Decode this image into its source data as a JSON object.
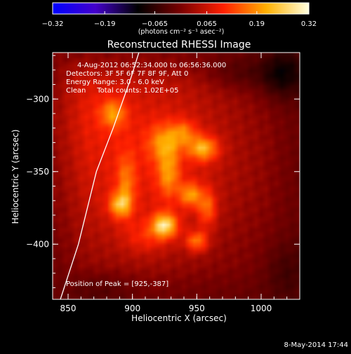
{
  "chart_data": {
    "type": "heatmap",
    "title": "Reconstructed RHESSI Image",
    "xlabel": "Heliocentric X (arcsec)",
    "ylabel": "Heliocentric Y (arcsec)",
    "xlim": [
      838,
      1030
    ],
    "ylim": [
      -438,
      -268
    ],
    "xticks": [
      850,
      900,
      950,
      1000
    ],
    "yticks": [
      -300,
      -350,
      -400
    ],
    "xtick_labels": [
      "850",
      "900",
      "950",
      "1000"
    ],
    "ytick_labels": [
      "−300",
      "−350",
      "−400"
    ],
    "colorbar": {
      "range": [
        -0.32,
        0.32
      ],
      "tick_values": [
        -0.32,
        -0.19,
        -0.065,
        0.065,
        0.19,
        0.32
      ],
      "tick_labels": [
        "−0.32",
        "−0.19",
        "−0.065",
        "0.065",
        "0.19",
        "0.32"
      ],
      "unit_label": "(photons cm⁻² s⁻¹ asec⁻²)",
      "colors": [
        "#0000ff",
        "#4400cc",
        "#000000",
        "#7a0000",
        "#ff2000",
        "#ffb000",
        "#ffffe0"
      ]
    },
    "annotations": [
      "4-Aug-2012 06:52:34.000 to 06:56:36.000",
      "Detectors: 3F 5F 6F 7F 8F 9F, Att 0",
      "Energy Range: 3.0 - 6.0 keV",
      "Clean     Total counts: 1.02E+05"
    ],
    "peak_text": "Position of Peak = [925,-387]",
    "peak": [
      925,
      -387
    ],
    "background_level": 0.13,
    "sources": [
      {
        "x": 907,
        "y": -340,
        "sx": 65,
        "sy": 60,
        "amp": 0.1
      },
      {
        "x": 860,
        "y": -300,
        "sx": 22,
        "sy": 25,
        "amp": 0.03
      },
      {
        "x": 885,
        "y": -310,
        "sx": 7,
        "sy": 7,
        "amp": 0.1
      },
      {
        "x": 925,
        "y": -330,
        "sx": 9,
        "sy": 9,
        "amp": 0.1
      },
      {
        "x": 940,
        "y": -323,
        "sx": 7,
        "sy": 6,
        "amp": 0.08
      },
      {
        "x": 955,
        "y": -334,
        "sx": 8,
        "sy": 6,
        "amp": 0.14
      },
      {
        "x": 928,
        "y": -352,
        "sx": 6,
        "sy": 11,
        "amp": 0.1
      },
      {
        "x": 895,
        "y": -358,
        "sx": 5,
        "sy": 14,
        "amp": 0.08
      },
      {
        "x": 890,
        "y": -373,
        "sx": 6,
        "sy": 6,
        "amp": 0.13
      },
      {
        "x": 925,
        "y": -387,
        "sx": 7,
        "sy": 6,
        "amp": 0.18
      },
      {
        "x": 945,
        "y": -366,
        "sx": 6,
        "sy": 6,
        "amp": 0.12
      },
      {
        "x": 958,
        "y": -375,
        "sx": 5,
        "sy": 9,
        "amp": 0.1
      },
      {
        "x": 950,
        "y": -398,
        "sx": 6,
        "sy": 5,
        "amp": 0.12
      },
      {
        "x": 910,
        "y": -395,
        "sx": 12,
        "sy": 8,
        "amp": 0.05
      },
      {
        "x": 1018,
        "y": -282,
        "sx": 12,
        "sy": 12,
        "amp": -0.12
      },
      {
        "x": 985,
        "y": -282,
        "sx": 18,
        "sy": 8,
        "amp": -0.05
      },
      {
        "x": 1020,
        "y": -420,
        "sx": 12,
        "sy": 15,
        "amp": -0.05
      },
      {
        "x": 875,
        "y": -432,
        "sx": 18,
        "sy": 8,
        "amp": -0.04
      }
    ],
    "limb_curve": [
      [
        844,
        -438
      ],
      [
        858,
        -400
      ],
      [
        872,
        -350
      ],
      [
        885,
        -320
      ],
      [
        893,
        -300
      ],
      [
        899,
        -285
      ],
      [
        905,
        -268
      ]
    ]
  },
  "footer": {
    "date": "8-May-2014 17:44"
  }
}
